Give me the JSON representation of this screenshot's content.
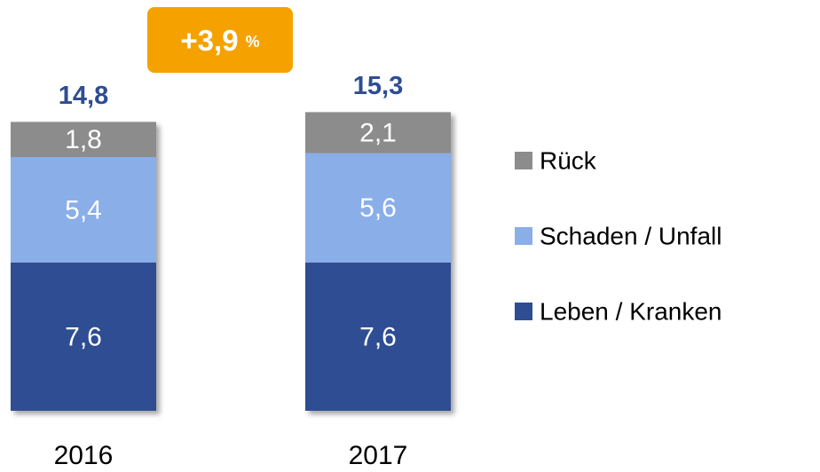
{
  "chart_data": {
    "type": "bar",
    "stacked": true,
    "categories": [
      "2016",
      "2017"
    ],
    "series": [
      {
        "name": "Leben / Kranken",
        "color": "#2e4d93",
        "values": [
          7.6,
          7.6
        ],
        "value_labels": [
          "7,6",
          "7,6"
        ]
      },
      {
        "name": "Schaden / Unfall",
        "color": "#8aaee8",
        "values": [
          5.4,
          5.6
        ],
        "value_labels": [
          "5,4",
          "5,6"
        ]
      },
      {
        "name": "Rück",
        "color": "#8c8c8c",
        "values": [
          1.8,
          2.1
        ],
        "value_labels": [
          "1,8",
          "2,1"
        ]
      }
    ],
    "totals": [
      14.8,
      15.3
    ],
    "total_labels": [
      "14,8",
      "15,3"
    ],
    "change": {
      "value": 3.9,
      "label": "+3,9",
      "unit": "%"
    },
    "total_color": "#2e4d93",
    "change_color": "#f5a200"
  }
}
